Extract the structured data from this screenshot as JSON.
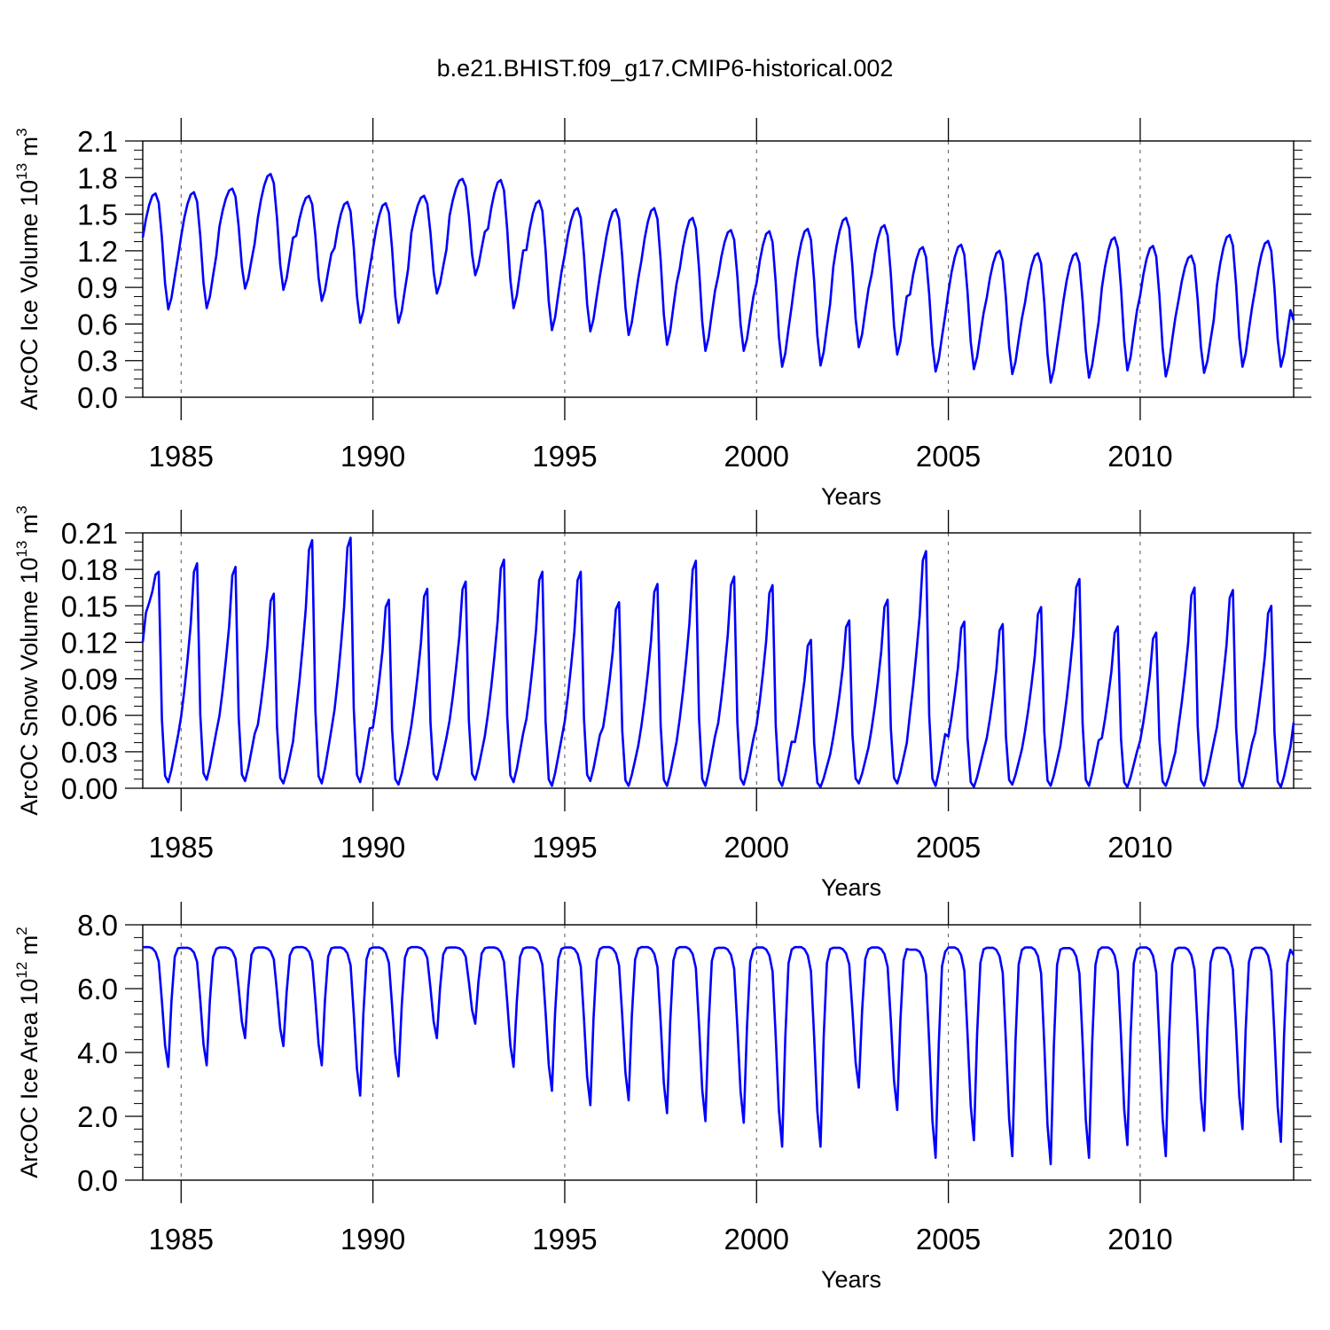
{
  "title": "b.e21.BHIST.f09_g17.CMIP6-historical.002",
  "colors": {
    "series": "#0000ff",
    "axis": "#000000",
    "grid": "#555555"
  },
  "chart_data": [
    {
      "type": "line",
      "title": "b.e21.BHIST.f09_g17.CMIP6-historical.002",
      "xlabel": "Years",
      "ylabel_main": "ArcOC Ice Volume 10",
      "ylabel_exp": "13",
      "ylabel_unit": " m",
      "ylabel_unit_exp": "3",
      "xlim": [
        1984,
        2014
      ],
      "ylim": [
        0,
        2.1
      ],
      "y_ticks": [
        "0.0",
        "0.3",
        "0.6",
        "0.9",
        "1.2",
        "1.5",
        "1.8",
        "2.1"
      ],
      "y_tick_values": [
        0,
        0.3,
        0.6,
        0.9,
        1.2,
        1.5,
        1.8,
        2.1
      ],
      "x_ticks": [
        "1985",
        "1990",
        "1995",
        "2000",
        "2005",
        "2010"
      ],
      "x_tick_values": [
        1985,
        1990,
        1995,
        2000,
        2005,
        2010
      ],
      "series_name": "ArcOC Ice Volume",
      "annual_max": [
        1.67,
        1.68,
        1.71,
        1.83,
        1.65,
        1.6,
        1.59,
        1.65,
        1.79,
        1.78,
        1.61,
        1.55,
        1.54,
        1.55,
        1.47,
        1.37,
        1.36,
        1.38,
        1.47,
        1.41,
        1.23,
        1.25,
        1.2,
        1.18,
        1.18,
        1.31,
        1.24,
        1.16,
        1.33,
        1.28
      ],
      "annual_min": [
        0.72,
        0.73,
        0.89,
        0.88,
        0.79,
        0.61,
        0.61,
        0.85,
        1.0,
        0.73,
        0.55,
        0.54,
        0.51,
        0.43,
        0.38,
        0.38,
        0.25,
        0.26,
        0.41,
        0.35,
        0.21,
        0.23,
        0.19,
        0.12,
        0.16,
        0.22,
        0.17,
        0.2,
        0.25,
        0.25
      ],
      "end_value": 0.63
    },
    {
      "type": "line",
      "xlabel": "Years",
      "ylabel_main": "ArcOC Snow Volume 10",
      "ylabel_exp": "13",
      "ylabel_unit": " m",
      "ylabel_unit_exp": "3",
      "xlim": [
        1984,
        2014
      ],
      "ylim": [
        0,
        0.21
      ],
      "y_ticks": [
        "0.00",
        "0.03",
        "0.06",
        "0.09",
        "0.12",
        "0.15",
        "0.18",
        "0.21"
      ],
      "y_tick_values": [
        0,
        0.03,
        0.06,
        0.09,
        0.12,
        0.15,
        0.18,
        0.21
      ],
      "x_ticks": [
        "1985",
        "1990",
        "1995",
        "2000",
        "2005",
        "2010"
      ],
      "x_tick_values": [
        1985,
        1990,
        1995,
        2000,
        2005,
        2010
      ],
      "series_name": "ArcOC Snow Volume",
      "start_value": 0.12,
      "annual_max": [
        0.178,
        0.185,
        0.182,
        0.16,
        0.204,
        0.206,
        0.155,
        0.164,
        0.17,
        0.188,
        0.178,
        0.178,
        0.153,
        0.168,
        0.187,
        0.174,
        0.167,
        0.122,
        0.138,
        0.155,
        0.195,
        0.137,
        0.135,
        0.149,
        0.172,
        0.133,
        0.128,
        0.165,
        0.163,
        0.15
      ],
      "annual_min": [
        0.005,
        0.007,
        0.006,
        0.004,
        0.004,
        0.005,
        0.003,
        0.007,
        0.007,
        0.005,
        0.002,
        0.006,
        0.002,
        0.002,
        0.002,
        0.003,
        0.002,
        0.001,
        0.004,
        0.004,
        0.002,
        0.001,
        0.003,
        0.002,
        0.002,
        0.001,
        0.002,
        0.002,
        0.001,
        0.001
      ],
      "end_value": 0.054
    },
    {
      "type": "line",
      "xlabel": "Years",
      "ylabel_main": "ArcOC Ice Area 10",
      "ylabel_exp": "12",
      "ylabel_unit": " m",
      "ylabel_unit_exp": "2",
      "xlim": [
        1984,
        2014
      ],
      "ylim": [
        0,
        8
      ],
      "y_ticks": [
        "0.0",
        "2.0",
        "4.0",
        "6.0",
        "8.0"
      ],
      "y_tick_values": [
        0,
        2,
        4,
        6,
        8
      ],
      "x_ticks": [
        "1985",
        "1990",
        "1995",
        "2000",
        "2005",
        "2010"
      ],
      "x_tick_values": [
        1985,
        1990,
        1995,
        2000,
        2005,
        2010
      ],
      "series_name": "ArcOC Ice Area",
      "annual_max": [
        7.3,
        7.28,
        7.29,
        7.29,
        7.3,
        7.29,
        7.29,
        7.3,
        7.29,
        7.29,
        7.29,
        7.29,
        7.3,
        7.3,
        7.3,
        7.28,
        7.29,
        7.3,
        7.28,
        7.29,
        7.22,
        7.29,
        7.28,
        7.29,
        7.27,
        7.29,
        7.29,
        7.28,
        7.28,
        7.28
      ],
      "annual_min": [
        3.55,
        3.6,
        4.45,
        4.2,
        3.6,
        2.65,
        3.25,
        4.45,
        4.9,
        3.55,
        2.8,
        2.35,
        2.5,
        2.1,
        1.85,
        1.8,
        1.05,
        1.05,
        2.9,
        2.2,
        0.7,
        1.25,
        0.75,
        0.5,
        0.7,
        1.1,
        0.75,
        1.55,
        1.6,
        1.2
      ],
      "end_value": 7.05
    }
  ]
}
